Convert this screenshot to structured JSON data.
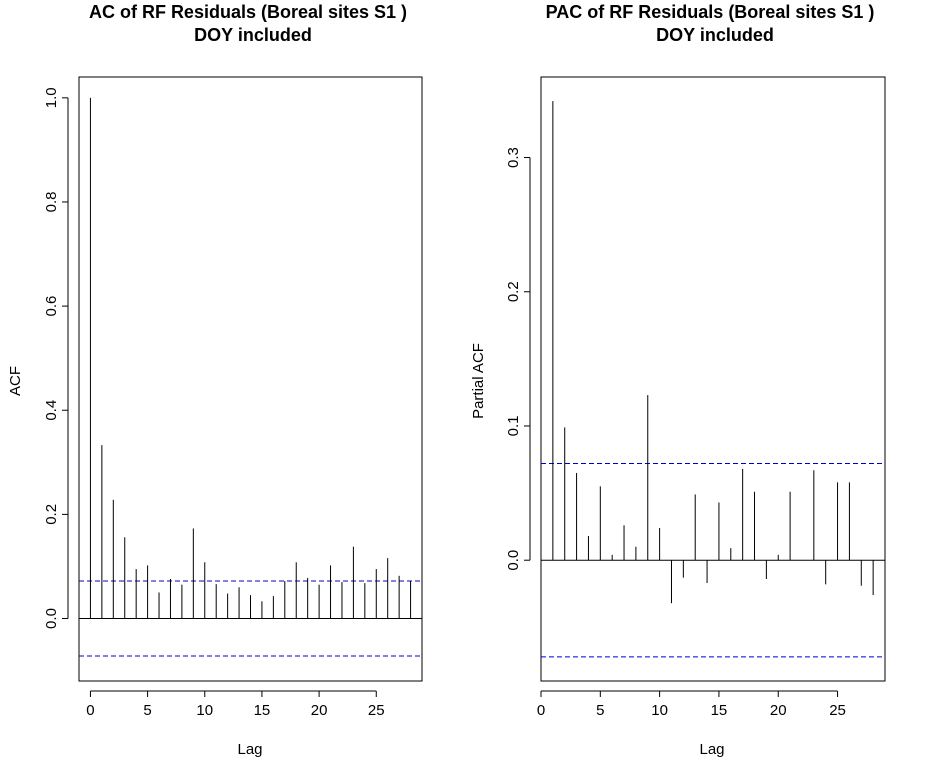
{
  "chart_data": [
    {
      "type": "bar",
      "title_line1": "AC of RF Residuals (Boreal sites S1 )",
      "title_line2": "DOY included",
      "xlabel": "Lag",
      "ylabel": "ACF",
      "xlim": [
        -1,
        29
      ],
      "ylim": [
        -0.12,
        1.04
      ],
      "xticks": [
        0,
        5,
        10,
        15,
        20,
        25
      ],
      "xtick_labels": [
        "0",
        "5",
        "10",
        "15",
        "20",
        "25"
      ],
      "yticks": [
        0.0,
        0.2,
        0.4,
        0.6,
        0.8,
        1.0
      ],
      "ytick_labels": [
        "0.0",
        "0.2",
        "0.4",
        "0.6",
        "0.8",
        "1.0"
      ],
      "conf_limit": 0.072,
      "lags": [
        0,
        1,
        2,
        3,
        4,
        5,
        6,
        7,
        8,
        9,
        10,
        11,
        12,
        13,
        14,
        15,
        16,
        17,
        18,
        19,
        20,
        21,
        22,
        23,
        24,
        25,
        26,
        27,
        28
      ],
      "values": [
        1.0,
        0.333,
        0.228,
        0.156,
        0.095,
        0.102,
        0.05,
        0.076,
        0.065,
        0.173,
        0.108,
        0.066,
        0.048,
        0.06,
        0.045,
        0.033,
        0.043,
        0.072,
        0.108,
        0.078,
        0.065,
        0.102,
        0.07,
        0.138,
        0.068,
        0.095,
        0.116,
        0.082,
        0.072
      ],
      "grid": false,
      "zero_line": true
    },
    {
      "type": "bar",
      "title_line1": "PAC of RF Residuals (Boreal sites S1 )",
      "title_line2": "DOY included",
      "xlabel": "Lag",
      "ylabel": "Partial ACF",
      "xlim": [
        0,
        29
      ],
      "ylim": [
        -0.09,
        0.36
      ],
      "xticks": [
        0,
        5,
        10,
        15,
        20,
        25
      ],
      "xtick_labels": [
        "0",
        "5",
        "10",
        "15",
        "20",
        "25"
      ],
      "yticks": [
        0.0,
        0.1,
        0.2,
        0.3
      ],
      "ytick_labels": [
        "0.0",
        "0.1",
        "0.2",
        "0.3"
      ],
      "conf_limit": 0.072,
      "lags": [
        1,
        2,
        3,
        4,
        5,
        6,
        7,
        8,
        9,
        10,
        11,
        12,
        13,
        14,
        15,
        16,
        17,
        18,
        19,
        20,
        21,
        22,
        23,
        24,
        25,
        26,
        27,
        28
      ],
      "values": [
        0.342,
        0.099,
        0.065,
        0.018,
        0.055,
        0.004,
        0.026,
        0.01,
        0.123,
        0.024,
        -0.032,
        -0.013,
        0.049,
        -0.017,
        0.043,
        0.009,
        0.068,
        0.051,
        -0.014,
        0.004,
        0.051,
        0.0,
        0.067,
        -0.018,
        0.058,
        0.058,
        -0.019,
        -0.026
      ],
      "grid": false,
      "zero_line": true
    }
  ],
  "colors": {
    "axis": "#000000",
    "bars": "#000000",
    "conf_line": "#0000cd"
  }
}
